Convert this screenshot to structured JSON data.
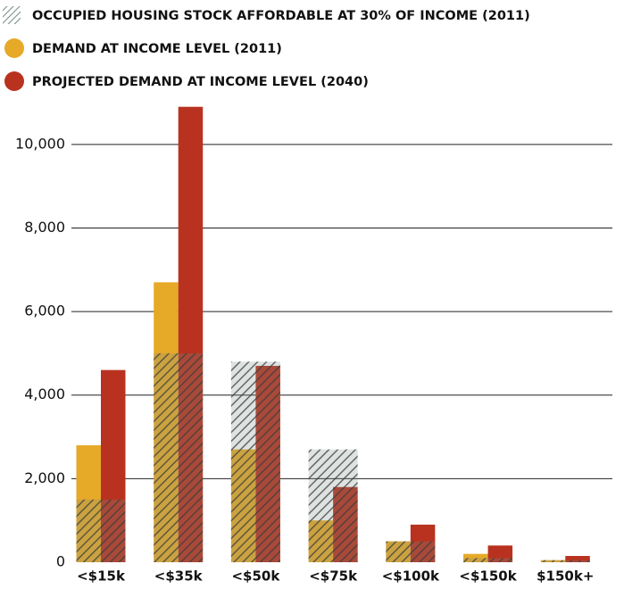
{
  "chart_data": {
    "type": "bar",
    "categories": [
      "<$15k",
      "<$35k",
      "<$50k",
      "<$75k",
      "<$100k",
      "<$150k",
      "$150k+"
    ],
    "series": [
      {
        "name": "OCCUPIED HOUSING STOCK AFFORDABLE AT 30% OF INCOME (2011)",
        "color": "#7d8f89",
        "hatch": true,
        "values": [
          1500,
          5000,
          4800,
          2700,
          500,
          100,
          50
        ]
      },
      {
        "name": "DEMAND AT INCOME LEVEL (2011)",
        "color": "#e6a928",
        "values": [
          2800,
          6700,
          2700,
          1000,
          500,
          200,
          50
        ]
      },
      {
        "name": "PROJECTED DEMAND AT INCOME LEVEL (2040)",
        "color": "#b8321f",
        "values": [
          4600,
          10900,
          4700,
          1800,
          900,
          400,
          150
        ]
      }
    ],
    "ylim": [
      0,
      11000
    ],
    "yticks": [
      0,
      {
        "value": 2000,
        "label": "2,000"
      },
      {
        "value": 4000,
        "label": "4,000"
      },
      {
        "value": 6000,
        "label": "6,000"
      },
      {
        "value": 8000,
        "label": "8,000"
      },
      {
        "value": 10000,
        "label": "10,000"
      }
    ],
    "grid": true
  }
}
